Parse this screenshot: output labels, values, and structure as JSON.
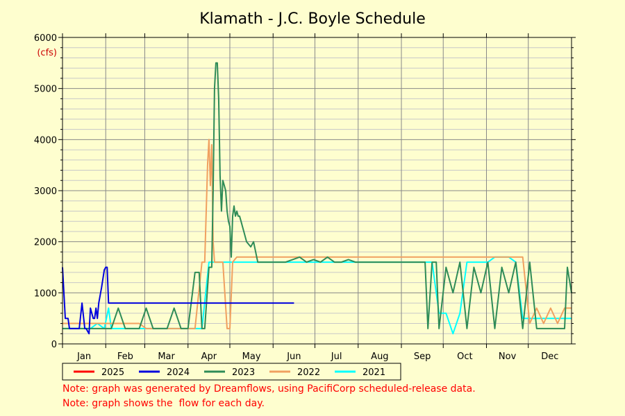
{
  "chart_data": {
    "type": "line",
    "title": "Klamath - J.C. Boyle Schedule",
    "ylabel": "(cfs)",
    "ylim": [
      0,
      6000
    ],
    "yticks": [
      "0",
      "1000",
      "2000",
      "3000",
      "4000",
      "5000",
      "6000"
    ],
    "xlim": [
      0,
      365
    ],
    "months": [
      "Jan",
      "Feb",
      "Mar",
      "Apr",
      "May",
      "Jun",
      "Jul",
      "Aug",
      "Sep",
      "Oct",
      "Nov",
      "Dec"
    ],
    "grid": true,
    "legend": "bottom",
    "series": [
      {
        "name": "2025",
        "color": "#ff0000",
        "x": [],
        "y": []
      },
      {
        "name": "2024",
        "color": "#0000dd",
        "x": [
          0,
          1,
          2,
          4,
          5,
          6,
          7,
          8,
          10,
          12,
          14,
          16,
          17,
          18,
          19,
          20,
          22,
          23,
          24,
          25,
          26,
          28,
          30,
          31,
          32,
          33,
          35,
          36,
          37,
          38,
          40,
          45,
          50,
          55,
          60,
          65,
          70,
          71,
          75,
          80,
          85,
          90,
          92,
          93,
          94,
          95,
          96,
          97,
          98,
          99,
          100,
          101,
          102,
          103,
          104,
          105,
          106,
          107,
          108,
          109,
          110,
          111,
          112,
          113,
          114,
          115,
          116,
          117,
          118,
          119,
          120,
          122,
          125,
          128,
          130,
          131,
          133,
          134,
          135,
          136,
          137,
          138,
          140,
          145,
          148,
          149,
          150,
          152,
          153,
          155,
          157,
          160,
          162,
          164,
          166
        ],
        "y": [
          1500,
          1000,
          500,
          500,
          300,
          300,
          300,
          300,
          300,
          300,
          800,
          300,
          300,
          250,
          200,
          700,
          500,
          500,
          700,
          500,
          800,
          1100,
          1450,
          1500,
          1500,
          800,
          800,
          800,
          800,
          800,
          800,
          800,
          800,
          800,
          800,
          800,
          800,
          800,
          800,
          800,
          800,
          800,
          800,
          800,
          800,
          800,
          800,
          800,
          800,
          800,
          800,
          800,
          800,
          800,
          800,
          800,
          800,
          800,
          800,
          800,
          800,
          800,
          800,
          800,
          800,
          800,
          800,
          800,
          800,
          800,
          800,
          800,
          800,
          800,
          800,
          800,
          800,
          800,
          800,
          800,
          800,
          800,
          800,
          800,
          800,
          800,
          800,
          800,
          800,
          800,
          800,
          800,
          800,
          800,
          800
        ]
      },
      {
        "name": "2023",
        "color": "#2e8b57",
        "x": [
          0,
          3,
          5,
          10,
          15,
          20,
          25,
          30,
          32,
          35,
          40,
          45,
          50,
          55,
          60,
          65,
          70,
          75,
          80,
          85,
          90,
          95,
          98,
          100,
          102,
          105,
          107,
          108,
          109,
          110,
          111,
          112,
          113,
          114,
          115,
          116,
          117,
          118,
          119,
          120,
          121,
          122,
          123,
          124,
          125,
          126,
          127,
          128,
          129,
          130,
          132,
          135,
          137,
          140,
          142,
          145,
          147,
          150,
          155,
          160,
          165,
          170,
          175,
          180,
          185,
          190,
          195,
          200,
          205,
          210,
          215,
          220,
          225,
          230,
          235,
          240,
          245,
          250,
          255,
          260,
          262,
          265,
          268,
          270,
          275,
          280,
          285,
          290,
          295,
          300,
          305,
          310,
          315,
          320,
          325,
          330,
          335,
          340,
          345,
          350,
          355,
          358,
          360,
          362,
          365
        ],
        "y": [
          300,
          300,
          300,
          300,
          300,
          300,
          300,
          300,
          300,
          300,
          700,
          300,
          300,
          300,
          700,
          300,
          300,
          300,
          700,
          300,
          300,
          1400,
          1400,
          300,
          300,
          1500,
          1500,
          3000,
          5000,
          5500,
          5500,
          4800,
          3300,
          2600,
          3200,
          3100,
          3000,
          2600,
          2400,
          2300,
          1700,
          2500,
          2700,
          2500,
          2600,
          2500,
          2500,
          2400,
          2300,
          2200,
          2000,
          1900,
          2000,
          1600,
          1600,
          1600,
          1600,
          1600,
          1600,
          1600,
          1650,
          1700,
          1600,
          1650,
          1600,
          1700,
          1600,
          1600,
          1650,
          1600,
          1600,
          1600,
          1600,
          1600,
          1600,
          1600,
          1600,
          1600,
          1600,
          1600,
          300,
          1600,
          1600,
          300,
          1500,
          1000,
          1600,
          300,
          1500,
          1000,
          1600,
          300,
          1500,
          1000,
          1600,
          300,
          1600,
          300,
          300,
          300,
          300,
          300,
          300,
          1500,
          1000
        ]
      },
      {
        "name": "2022",
        "color": "#f0a060",
        "x": [
          0,
          5,
          10,
          15,
          20,
          25,
          30,
          35,
          40,
          45,
          50,
          55,
          60,
          65,
          70,
          75,
          80,
          85,
          90,
          95,
          100,
          102,
          104,
          105,
          106,
          107,
          108,
          109,
          110,
          112,
          115,
          118,
          120,
          122,
          125,
          128,
          130,
          135,
          140,
          145,
          150,
          155,
          160,
          165,
          170,
          175,
          180,
          185,
          190,
          195,
          200,
          205,
          210,
          215,
          220,
          225,
          230,
          235,
          240,
          245,
          250,
          255,
          260,
          265,
          270,
          275,
          280,
          285,
          290,
          295,
          300,
          305,
          310,
          315,
          320,
          325,
          330,
          335,
          340,
          345,
          350,
          355,
          360,
          365
        ],
        "y": [
          400,
          400,
          400,
          400,
          400,
          400,
          400,
          400,
          400,
          400,
          400,
          400,
          300,
          300,
          300,
          300,
          300,
          300,
          300,
          300,
          1600,
          1600,
          3500,
          4000,
          3100,
          3900,
          2000,
          1600,
          1600,
          1600,
          1600,
          300,
          300,
          1600,
          1700,
          1700,
          1700,
          1700,
          1700,
          1700,
          1700,
          1700,
          1700,
          1700,
          1700,
          1700,
          1700,
          1700,
          1700,
          1700,
          1700,
          1700,
          1700,
          1700,
          1700,
          1700,
          1700,
          1700,
          1700,
          1700,
          1700,
          1700,
          1700,
          1700,
          1700,
          1700,
          1700,
          1700,
          1700,
          1700,
          1700,
          1700,
          1700,
          1700,
          1700,
          1700,
          1700,
          400,
          700,
          400,
          700,
          400,
          700,
          700
        ]
      },
      {
        "name": "2021",
        "color": "#00ffff",
        "x": [
          0,
          5,
          10,
          15,
          20,
          25,
          30,
          33,
          35,
          40,
          45,
          50,
          55,
          60,
          65,
          70,
          75,
          80,
          85,
          90,
          95,
          100,
          105,
          110,
          115,
          120,
          125,
          130,
          135,
          140,
          145,
          150,
          155,
          160,
          165,
          170,
          175,
          180,
          185,
          190,
          195,
          200,
          205,
          210,
          215,
          220,
          225,
          230,
          235,
          240,
          245,
          250,
          255,
          260,
          265,
          270,
          275,
          280,
          285,
          290,
          295,
          300,
          305,
          310,
          315,
          320,
          325,
          330,
          335,
          340,
          345,
          350,
          355,
          360,
          365
        ],
        "y": [
          300,
          300,
          300,
          300,
          300,
          400,
          300,
          700,
          300,
          300,
          300,
          300,
          300,
          300,
          300,
          300,
          300,
          300,
          300,
          300,
          300,
          300,
          1600,
          1600,
          1600,
          1600,
          1600,
          1600,
          1600,
          1600,
          1600,
          1600,
          1600,
          1600,
          1600,
          1600,
          1600,
          1600,
          1600,
          1600,
          1600,
          1600,
          1600,
          1600,
          1600,
          1600,
          1600,
          1600,
          1600,
          1600,
          1600,
          1600,
          1600,
          1600,
          1600,
          600,
          600,
          200,
          600,
          1600,
          1600,
          1600,
          1600,
          1700,
          1700,
          1700,
          1600,
          500,
          500,
          500,
          500,
          500,
          500,
          500,
          500
        ]
      }
    ]
  },
  "notes": [
    "Note: graph was generated by Dreamflows, using PacifiCorp scheduled-release data.",
    "Note: graph shows the  flow for each day."
  ]
}
